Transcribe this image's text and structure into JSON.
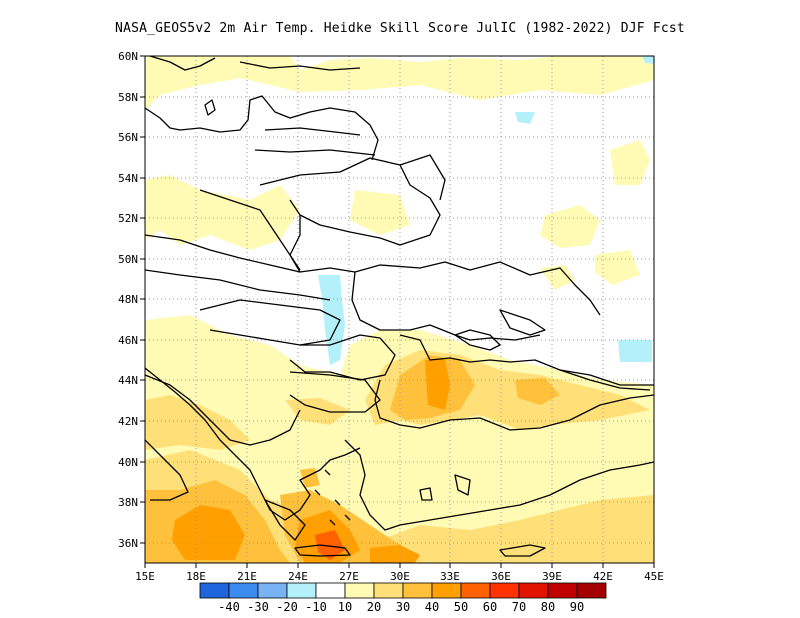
{
  "title": "NASA_GEOS5v2  2m Air Temp. Heidke Skill Score JulIC (1982-2022) DJF Fcst",
  "map": {
    "lat_labels": [
      "60N",
      "58N",
      "56N",
      "54N",
      "52N",
      "50N",
      "48N",
      "46N",
      "44N",
      "42N",
      "40N",
      "38N",
      "36N"
    ],
    "lon_labels": [
      "15E",
      "18E",
      "21E",
      "24E",
      "27E",
      "30E",
      "33E",
      "36E",
      "39E",
      "42E",
      "45E"
    ],
    "lon_range": [
      15,
      45
    ],
    "lat_range": [
      35,
      60
    ],
    "grid": "dotted"
  },
  "colorbar": {
    "labels": [
      "-40",
      "-30",
      "-20",
      "-10",
      "10",
      "20",
      "30",
      "40",
      "50",
      "60",
      "70",
      "80",
      "90"
    ],
    "colors": [
      "#1e64dc",
      "#3c8cf0",
      "#78b4f5",
      "#b4f0fa",
      "#ffffff",
      "#fffab4",
      "#ffe078",
      "#ffc03c",
      "#ffa000",
      "#ff6000",
      "#ff3200",
      "#e11400",
      "#c00000",
      "#a50000"
    ]
  }
}
